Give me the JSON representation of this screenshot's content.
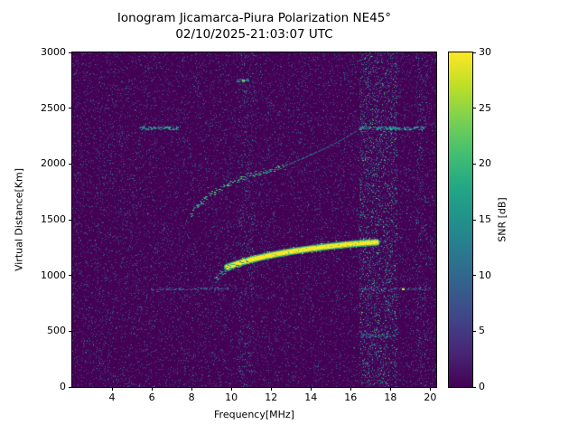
{
  "chart_data": {
    "type": "heatmap",
    "title": "Ionogram Jicamarca-Piura Polarization NE45°",
    "subtitle": "02/10/2025-21:03:07 UTC",
    "xlabel": "Frequency[MHz]",
    "ylabel": "Virtual Distance[Km]",
    "xlim": [
      2,
      20.3
    ],
    "ylim": [
      0,
      3000
    ],
    "xticks": [
      4,
      6,
      8,
      10,
      12,
      14,
      16,
      18,
      20
    ],
    "yticks": [
      0,
      500,
      1000,
      1500,
      2000,
      2500,
      3000
    ],
    "grid": false,
    "legend": "none",
    "colorbar": {
      "label": "SNR [dB]",
      "ticks": [
        0,
        5,
        10,
        15,
        20,
        25,
        30
      ],
      "vmin": 0,
      "vmax": 30,
      "colormap": "viridis",
      "colormap_stops": [
        "#440154",
        "#482475",
        "#414487",
        "#355f8d",
        "#2a788e",
        "#21918c",
        "#22a884",
        "#44bf70",
        "#7ad151",
        "#bddf26",
        "#fde725"
      ]
    },
    "background_snr_db": 0,
    "noise": {
      "seed": 7,
      "speckle_count": 34000,
      "max_snr_db": 12
    },
    "rfi_bands_mhz": [
      {
        "range": [
          10.35,
          11.15
        ],
        "density": 0.35,
        "max_snr_db": 18
      },
      {
        "range": [
          16.45,
          18.35
        ],
        "density": 0.8,
        "max_snr_db": 24
      },
      {
        "range": [
          19.3,
          19.85
        ],
        "density": 0.35,
        "max_snr_db": 18
      }
    ],
    "interference_rows": [
      {
        "km": 2320,
        "thickness_km": 28,
        "snr_db": 17,
        "density": 0.55,
        "ranges_mhz": [
          [
            5.4,
            7.3
          ],
          [
            16.4,
            19.7
          ]
        ]
      },
      {
        "km": 880,
        "thickness_km": 20,
        "snr_db": 10,
        "density": 0.3,
        "ranges_mhz": [
          [
            5.9,
            10.0
          ],
          [
            16.4,
            19.6
          ]
        ]
      },
      {
        "km": 2750,
        "thickness_km": 25,
        "snr_db": 16,
        "density": 0.6,
        "ranges_mhz": [
          [
            10.25,
            10.85
          ]
        ]
      },
      {
        "km": 460,
        "thickness_km": 30,
        "snr_db": 12,
        "density": 0.25,
        "ranges_mhz": [
          [
            16.5,
            18.4
          ]
        ]
      }
    ],
    "echo_traces": [
      {
        "name": "F-layer echo strong",
        "style": "line",
        "snr_db": 30,
        "width_km": 40,
        "points_mhz_km": [
          [
            9.8,
            1075
          ],
          [
            10.2,
            1100
          ],
          [
            10.6,
            1122
          ],
          [
            11.0,
            1142
          ],
          [
            11.5,
            1163
          ],
          [
            12.0,
            1182
          ],
          [
            12.5,
            1199
          ],
          [
            13.0,
            1214
          ],
          [
            13.5,
            1228
          ],
          [
            14.0,
            1241
          ],
          [
            14.5,
            1252
          ],
          [
            15.0,
            1263
          ],
          [
            15.5,
            1272
          ],
          [
            16.0,
            1281
          ],
          [
            16.5,
            1288
          ],
          [
            17.0,
            1294
          ],
          [
            17.3,
            1297
          ]
        ]
      },
      {
        "name": "F-layer leading edge",
        "style": "scatter",
        "snr_db": 18,
        "width_km": 45,
        "points_mhz_km": [
          [
            9.15,
            960
          ],
          [
            9.3,
            985
          ],
          [
            9.45,
            1010
          ],
          [
            9.6,
            1035
          ],
          [
            9.75,
            1058
          ],
          [
            9.95,
            1080
          ],
          [
            10.2,
            1100
          ],
          [
            10.5,
            1118
          ],
          [
            10.9,
            1138
          ]
        ]
      },
      {
        "name": "Second-hop echo",
        "style": "scatter",
        "snr_db": 20,
        "width_km": 35,
        "points_mhz_km": [
          [
            7.95,
            1545
          ],
          [
            8.15,
            1590
          ],
          [
            8.35,
            1632
          ],
          [
            8.55,
            1668
          ],
          [
            8.75,
            1700
          ],
          [
            9.0,
            1733
          ],
          [
            9.3,
            1766
          ],
          [
            9.6,
            1796
          ],
          [
            9.95,
            1828
          ],
          [
            10.3,
            1857
          ],
          [
            10.7,
            1886
          ],
          [
            11.1,
            1911
          ],
          [
            11.5,
            1932
          ],
          [
            11.9,
            1948
          ],
          [
            12.3,
            1961
          ],
          [
            12.7,
            1971
          ]
        ]
      },
      {
        "name": "Second-hop faint extension",
        "style": "thin",
        "snr_db": 14,
        "width_km": 12,
        "points_mhz_km": [
          [
            12.7,
            1985
          ],
          [
            13.4,
            2035
          ],
          [
            14.1,
            2090
          ],
          [
            14.9,
            2155
          ],
          [
            15.7,
            2230
          ],
          [
            16.35,
            2300
          ]
        ]
      }
    ],
    "bright_spots": [
      {
        "mhz": 18.6,
        "km": 880,
        "snr_db": 28
      },
      {
        "mhz": 10.55,
        "km": 2750,
        "snr_db": 24
      }
    ]
  }
}
